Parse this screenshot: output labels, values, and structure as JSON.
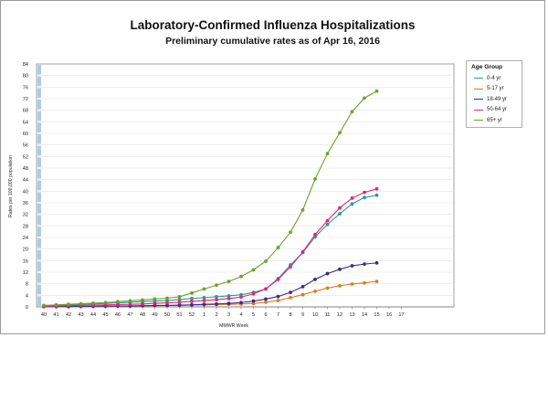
{
  "chart_data": {
    "type": "line",
    "title": "Laboratory-Confirmed Influenza Hospitalizations",
    "subtitle": "Preliminary cumulative rates as of Apr 16, 2016",
    "xlabel": "MMWR Week",
    "ylabel": "Rates per 100,000 population",
    "x_categories": [
      "40",
      "41",
      "42",
      "43",
      "44",
      "45",
      "46",
      "47",
      "48",
      "49",
      "50",
      "51",
      "52",
      "1",
      "2",
      "3",
      "4",
      "5",
      "6",
      "7",
      "8",
      "9",
      "10",
      "11",
      "12",
      "13",
      "14",
      "15",
      "16",
      "17"
    ],
    "yticks": [
      0,
      4,
      8,
      12,
      16,
      20,
      24,
      28,
      32,
      36,
      40,
      44,
      48,
      52,
      56,
      60,
      64,
      68,
      72,
      76,
      80,
      84
    ],
    "ylim": [
      0,
      84
    ],
    "grid": true,
    "legend": {
      "title": "Age Group",
      "position": "right"
    },
    "series": [
      {
        "name": "0-4 yr",
        "color": "#2a9d8f",
        "values": [
          0.3,
          0.5,
          0.6,
          0.8,
          1.0,
          1.2,
          1.4,
          1.6,
          1.8,
          2.0,
          2.2,
          2.5,
          2.9,
          3.2,
          3.5,
          3.8,
          4.2,
          5.0,
          6.2,
          9.8,
          14.5,
          18.8,
          24.2,
          28.5,
          32.2,
          35.6,
          37.8,
          38.6
        ]
      },
      {
        "name": "5-17 yr",
        "color": "#e07b1a",
        "values": [
          0.1,
          0.1,
          0.1,
          0.2,
          0.2,
          0.2,
          0.3,
          0.3,
          0.4,
          0.4,
          0.5,
          0.5,
          0.6,
          0.7,
          0.8,
          0.9,
          1.0,
          1.2,
          1.6,
          2.2,
          3.2,
          4.2,
          5.4,
          6.5,
          7.3,
          7.9,
          8.3,
          8.8
        ]
      },
      {
        "name": "18-49 yr",
        "color": "#3d2a8c",
        "values": [
          0.1,
          0.1,
          0.1,
          0.2,
          0.2,
          0.3,
          0.3,
          0.3,
          0.4,
          0.5,
          0.5,
          0.6,
          0.7,
          0.9,
          1.0,
          1.2,
          1.5,
          2.0,
          2.7,
          3.6,
          5.0,
          7.0,
          9.5,
          11.5,
          13.0,
          14.2,
          14.8,
          15.2
        ]
      },
      {
        "name": "50-64 yr",
        "color": "#e0267a",
        "values": [
          0.2,
          0.3,
          0.4,
          0.5,
          0.6,
          0.7,
          0.8,
          0.9,
          1.0,
          1.2,
          1.4,
          1.6,
          1.9,
          2.2,
          2.5,
          2.9,
          3.4,
          4.5,
          6.2,
          9.5,
          13.8,
          19.0,
          25.0,
          29.8,
          34.2,
          37.6,
          39.6,
          40.8
        ]
      },
      {
        "name": "65+ yr",
        "color": "#6aa32a",
        "values": [
          0.5,
          0.7,
          0.9,
          1.1,
          1.3,
          1.5,
          1.8,
          2.1,
          2.4,
          2.7,
          3.0,
          3.5,
          4.8,
          6.2,
          7.5,
          8.8,
          10.5,
          12.8,
          15.8,
          20.5,
          25.8,
          33.5,
          44.2,
          53.0,
          60.2,
          67.5,
          72.2,
          74.6
        ]
      }
    ]
  }
}
